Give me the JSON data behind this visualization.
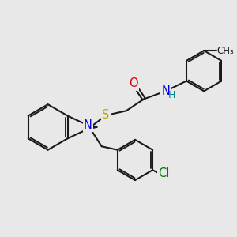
{
  "bg_color": "#e8e8e8",
  "bond_color": "#1a1a1a",
  "bond_width": 1.5,
  "dbo": 0.055,
  "atom_colors": {
    "O": "#dd0000",
    "N": "#0000ee",
    "S": "#bbaa00",
    "Cl": "#007700",
    "H": "#008888",
    "C": "#1a1a1a"
  },
  "fs": 10.5
}
